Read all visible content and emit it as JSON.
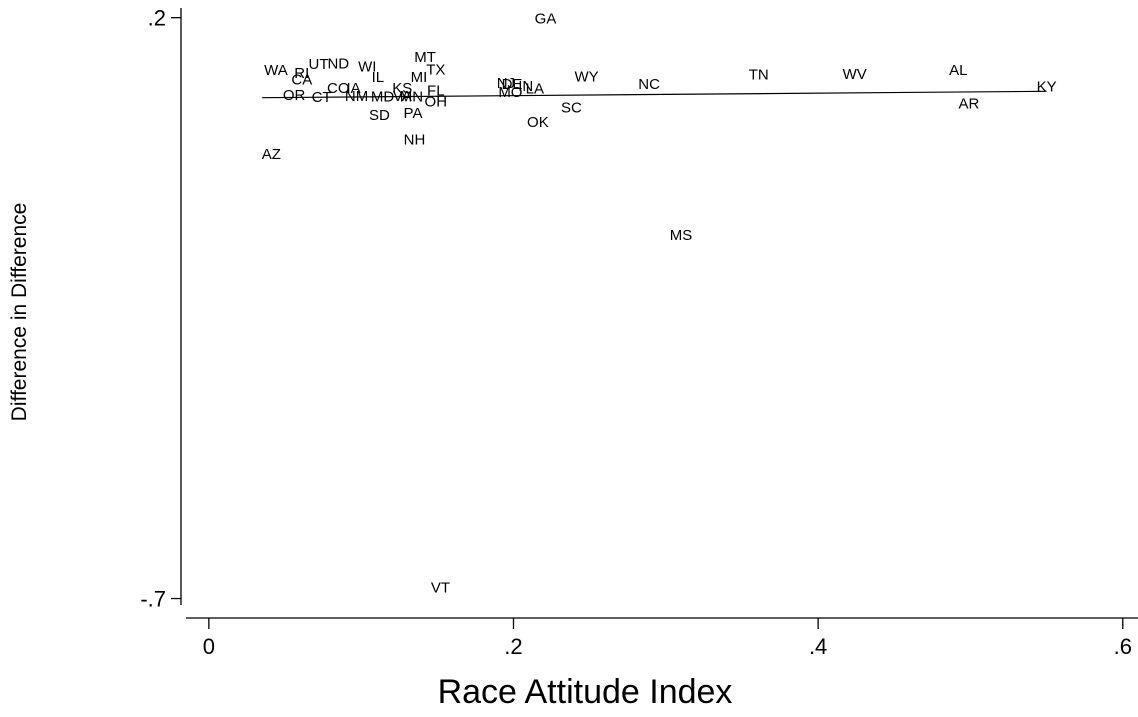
{
  "chart_data": {
    "type": "scatter",
    "title": "",
    "xlabel": "Race Attitude Index",
    "ylabel": "Difference in Difference",
    "xlim": [
      -0.015,
      0.61
    ],
    "ylim": [
      -0.71,
      0.215
    ],
    "x_ticks": [
      0,
      0.2,
      0.4,
      0.6
    ],
    "x_tick_labels": [
      "0",
      ".2",
      ".4",
      ".6"
    ],
    "y_ticks": [
      0.2,
      -0.7
    ],
    "y_tick_labels": [
      ".2",
      "-.7"
    ],
    "grid": false,
    "marker": "state-abbreviation-labels",
    "points": [
      {
        "label": "GA",
        "x": 0.221,
        "y": 0.199
      },
      {
        "label": "MT",
        "x": 0.142,
        "y": 0.139
      },
      {
        "label": "UT",
        "x": 0.072,
        "y": 0.128
      },
      {
        "label": "ND",
        "x": 0.085,
        "y": 0.129
      },
      {
        "label": "WI",
        "x": 0.104,
        "y": 0.124
      },
      {
        "label": "WA",
        "x": 0.044,
        "y": 0.119
      },
      {
        "label": "TX",
        "x": 0.149,
        "y": 0.12
      },
      {
        "label": "RI",
        "x": 0.061,
        "y": 0.114
      },
      {
        "label": "IL",
        "x": 0.111,
        "y": 0.108
      },
      {
        "label": "MI",
        "x": 0.138,
        "y": 0.108
      },
      {
        "label": "CA",
        "x": 0.061,
        "y": 0.104
      },
      {
        "label": "AL",
        "x": 0.492,
        "y": 0.119
      },
      {
        "label": "WV",
        "x": 0.424,
        "y": 0.113
      },
      {
        "label": "TN",
        "x": 0.361,
        "y": 0.112
      },
      {
        "label": "WY",
        "x": 0.248,
        "y": 0.109
      },
      {
        "label": "NC",
        "x": 0.289,
        "y": 0.097
      },
      {
        "label": "NJ",
        "x": 0.195,
        "y": 0.099
      },
      {
        "label": "DE",
        "x": 0.199,
        "y": 0.097
      },
      {
        "label": "IN",
        "x": 0.208,
        "y": 0.094
      },
      {
        "label": "LA",
        "x": 0.214,
        "y": 0.09
      },
      {
        "label": "CO",
        "x": 0.085,
        "y": 0.091
      },
      {
        "label": "IA",
        "x": 0.095,
        "y": 0.091
      },
      {
        "label": "KS",
        "x": 0.127,
        "y": 0.091
      },
      {
        "label": "FL",
        "x": 0.149,
        "y": 0.087
      },
      {
        "label": "MO",
        "x": 0.198,
        "y": 0.085
      },
      {
        "label": "KY",
        "x": 0.55,
        "y": 0.093
      },
      {
        "label": "OR",
        "x": 0.056,
        "y": 0.08
      },
      {
        "label": "CT",
        "x": 0.074,
        "y": 0.077
      },
      {
        "label": "NM",
        "x": 0.097,
        "y": 0.079
      },
      {
        "label": "MD",
        "x": 0.114,
        "y": 0.078
      },
      {
        "label": "VA",
        "x": 0.127,
        "y": 0.079
      },
      {
        "label": "MN",
        "x": 0.133,
        "y": 0.078
      },
      {
        "label": "OH",
        "x": 0.149,
        "y": 0.07
      },
      {
        "label": "AR",
        "x": 0.499,
        "y": 0.067
      },
      {
        "label": "SC",
        "x": 0.238,
        "y": 0.061
      },
      {
        "label": "SD",
        "x": 0.112,
        "y": 0.049
      },
      {
        "label": "PA",
        "x": 0.134,
        "y": 0.052
      },
      {
        "label": "OK",
        "x": 0.216,
        "y": 0.038
      },
      {
        "label": "NH",
        "x": 0.135,
        "y": 0.011
      },
      {
        "label": "AZ",
        "x": 0.041,
        "y": -0.011
      },
      {
        "label": "MS",
        "x": 0.31,
        "y": -0.137
      },
      {
        "label": "VT",
        "x": 0.152,
        "y": -0.683
      }
    ],
    "fit_line": {
      "x": [
        0.035,
        0.55
      ],
      "y": [
        0.076,
        0.086
      ]
    }
  }
}
